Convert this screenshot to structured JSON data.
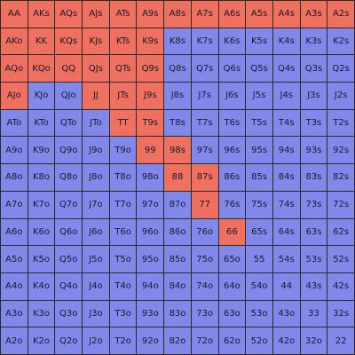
{
  "range_grid": {
    "colors": {
      "raise": "#f07060",
      "fold": "#8287ea"
    },
    "rows": [
      [
        "AA",
        "AKs",
        "AQs",
        "AJs",
        "ATs",
        "A9s",
        "A8s",
        "A7s",
        "A6s",
        "A5s",
        "A4s",
        "A3s",
        "A2s"
      ],
      [
        "AKo",
        "KK",
        "KQs",
        "KJs",
        "KTs",
        "K9s",
        "K8s",
        "K7s",
        "K6s",
        "K5s",
        "K4s",
        "K3s",
        "K2s"
      ],
      [
        "AQo",
        "KQo",
        "QQ",
        "QJs",
        "QTs",
        "Q9s",
        "Q8s",
        "Q7s",
        "Q6s",
        "Q5s",
        "Q4s",
        "Q3s",
        "Q2s"
      ],
      [
        "AJo",
        "KJo",
        "QJo",
        "JJ",
        "JTs",
        "J9s",
        "J8s",
        "J7s",
        "J6s",
        "J5s",
        "J4s",
        "J3s",
        "J2s"
      ],
      [
        "ATo",
        "KTo",
        "QTo",
        "JTo",
        "TT",
        "T9s",
        "T8s",
        "T7s",
        "T6s",
        "T5s",
        "T4s",
        "T3s",
        "T2s"
      ],
      [
        "A9o",
        "K9o",
        "Q9o",
        "J9o",
        "T9o",
        "99",
        "98s",
        "97s",
        "96s",
        "95s",
        "94s",
        "93s",
        "92s"
      ],
      [
        "A8o",
        "K8o",
        "Q8o",
        "J8o",
        "T8o",
        "98o",
        "88",
        "87s",
        "86s",
        "85s",
        "84s",
        "83s",
        "82s"
      ],
      [
        "A7o",
        "K7o",
        "Q7o",
        "J7o",
        "T7o",
        "97o",
        "87o",
        "77",
        "76s",
        "75s",
        "74s",
        "73s",
        "72s"
      ],
      [
        "A6o",
        "K6o",
        "Q6o",
        "J6o",
        "T6o",
        "96o",
        "86o",
        "76o",
        "66",
        "65s",
        "64s",
        "63s",
        "62s"
      ],
      [
        "A5o",
        "K5o",
        "Q5o",
        "J5o",
        "T5o",
        "95o",
        "85o",
        "75o",
        "65o",
        "55",
        "54s",
        "53s",
        "52s"
      ],
      [
        "A4o",
        "K4o",
        "Q4o",
        "J4o",
        "T4o",
        "94o",
        "84o",
        "74o",
        "64o",
        "54o",
        "44",
        "43s",
        "42s"
      ],
      [
        "A3o",
        "K3o",
        "Q3o",
        "J3o",
        "T3o",
        "93o",
        "83o",
        "73o",
        "63o",
        "53o",
        "43o",
        "33",
        "32s"
      ],
      [
        "A2o",
        "K2o",
        "Q2o",
        "J2o",
        "T2o",
        "92o",
        "82o",
        "72o",
        "62o",
        "52o",
        "42o",
        "32o",
        "22"
      ]
    ],
    "highlight": [
      [
        1,
        1,
        1,
        1,
        1,
        1,
        1,
        1,
        1,
        1,
        1,
        1,
        1
      ],
      [
        1,
        1,
        1,
        1,
        1,
        1,
        0,
        0,
        0,
        0,
        0,
        0,
        0
      ],
      [
        1,
        1,
        1,
        1,
        1,
        1,
        0,
        0,
        0,
        0,
        0,
        0,
        0
      ],
      [
        1,
        0,
        0,
        1,
        1,
        1,
        0,
        0,
        0,
        0,
        0,
        0,
        0
      ],
      [
        0,
        0,
        0,
        0,
        1,
        1,
        0,
        0,
        0,
        0,
        0,
        0,
        0
      ],
      [
        0,
        0,
        0,
        0,
        0,
        1,
        1,
        0,
        0,
        0,
        0,
        0,
        0
      ],
      [
        0,
        0,
        0,
        0,
        0,
        0,
        1,
        1,
        0,
        0,
        0,
        0,
        0
      ],
      [
        0,
        0,
        0,
        0,
        0,
        0,
        0,
        1,
        0,
        0,
        0,
        0,
        0
      ],
      [
        0,
        0,
        0,
        0,
        0,
        0,
        0,
        0,
        1,
        0,
        0,
        0,
        0
      ],
      [
        0,
        0,
        0,
        0,
        0,
        0,
        0,
        0,
        0,
        0,
        0,
        0,
        0
      ],
      [
        0,
        0,
        0,
        0,
        0,
        0,
        0,
        0,
        0,
        0,
        0,
        0,
        0
      ],
      [
        0,
        0,
        0,
        0,
        0,
        0,
        0,
        0,
        0,
        0,
        0,
        0,
        0
      ],
      [
        0,
        0,
        0,
        0,
        0,
        0,
        0,
        0,
        0,
        0,
        0,
        0,
        0
      ]
    ]
  }
}
